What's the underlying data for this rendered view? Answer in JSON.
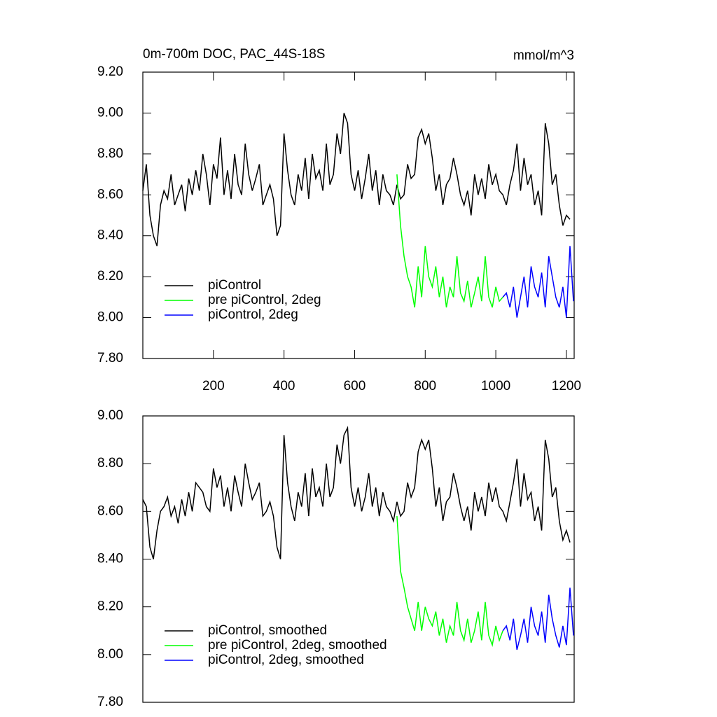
{
  "chart_data": [
    {
      "type": "line",
      "title": "0m-700m DOC, PAC_44S-18S",
      "units": "mmol/m^3",
      "legend": "lower left",
      "xlim": [
        0,
        1222
      ],
      "xticks": [
        200,
        400,
        600,
        800,
        1000,
        1200
      ],
      "ylim": [
        7.8,
        9.2
      ],
      "yticks": [
        {
          "value": 7.8,
          "label": "7.80"
        },
        {
          "value": 8.0,
          "label": "8.00"
        },
        {
          "value": 8.2,
          "label": "8.20"
        },
        {
          "value": 8.4,
          "label": "8.40"
        },
        {
          "value": 8.6,
          "label": "8.60"
        },
        {
          "value": 8.8,
          "label": "8.80"
        },
        {
          "value": 9.0,
          "label": "9.00"
        },
        {
          "value": 9.2,
          "label": "9.20"
        }
      ],
      "series": [
        {
          "name": "piControl",
          "color": "#000000",
          "x": [
            0,
            10,
            20,
            30,
            40,
            50,
            60,
            70,
            80,
            90,
            100,
            110,
            120,
            130,
            140,
            150,
            160,
            170,
            180,
            190,
            200,
            210,
            220,
            230,
            240,
            250,
            260,
            270,
            280,
            290,
            300,
            310,
            320,
            330,
            340,
            350,
            360,
            370,
            380,
            390,
            400,
            410,
            420,
            430,
            440,
            450,
            460,
            470,
            480,
            490,
            500,
            510,
            520,
            530,
            540,
            550,
            560,
            570,
            580,
            590,
            600,
            610,
            620,
            630,
            640,
            650,
            660,
            670,
            680,
            690,
            700,
            710,
            720,
            730,
            740,
            750,
            760,
            770,
            780,
            790,
            800,
            810,
            820,
            830,
            840,
            850,
            860,
            870,
            880,
            890,
            900,
            910,
            920,
            930,
            940,
            950,
            960,
            970,
            980,
            990,
            1000,
            1010,
            1020,
            1030,
            1040,
            1050,
            1060,
            1070,
            1080,
            1090,
            1100,
            1110,
            1120,
            1130,
            1140,
            1150,
            1160,
            1170,
            1180,
            1190,
            1200,
            1210
          ],
          "values": [
            8.62,
            8.75,
            8.5,
            8.4,
            8.35,
            8.55,
            8.62,
            8.58,
            8.7,
            8.55,
            8.6,
            8.65,
            8.52,
            8.68,
            8.6,
            8.72,
            8.62,
            8.8,
            8.7,
            8.55,
            8.75,
            8.68,
            8.88,
            8.6,
            8.72,
            8.58,
            8.8,
            8.65,
            8.6,
            8.85,
            8.7,
            8.62,
            8.68,
            8.75,
            8.55,
            8.6,
            8.65,
            8.58,
            8.4,
            8.45,
            8.9,
            8.72,
            8.6,
            8.55,
            8.7,
            8.62,
            8.78,
            8.58,
            8.8,
            8.68,
            8.72,
            8.62,
            8.85,
            8.65,
            8.7,
            8.9,
            8.8,
            9.0,
            8.95,
            8.7,
            8.62,
            8.72,
            8.58,
            8.68,
            8.8,
            8.62,
            8.72,
            8.55,
            8.7,
            8.62,
            8.6,
            8.55,
            8.65,
            8.58,
            8.6,
            8.75,
            8.68,
            8.7,
            8.88,
            8.92,
            8.85,
            8.9,
            8.78,
            8.62,
            8.7,
            8.55,
            8.65,
            8.68,
            8.78,
            8.7,
            8.6,
            8.55,
            8.62,
            8.5,
            8.7,
            8.6,
            8.68,
            8.58,
            8.75,
            8.65,
            8.7,
            8.62,
            8.6,
            8.55,
            8.65,
            8.72,
            8.85,
            8.62,
            8.78,
            8.65,
            8.7,
            8.55,
            8.62,
            8.5,
            8.95,
            8.85,
            8.65,
            8.7,
            8.55,
            8.45,
            8.5,
            8.48
          ]
        },
        {
          "name": "pre piControl, 2deg",
          "color": "#00ff00",
          "x": [
            720,
            730,
            740,
            750,
            760,
            770,
            780,
            790,
            800,
            810,
            820,
            830,
            840,
            850,
            860,
            870,
            880,
            890,
            900,
            910,
            920,
            930,
            940,
            950,
            960,
            970,
            980,
            990,
            1000,
            1010,
            1020
          ],
          "values": [
            8.7,
            8.45,
            8.3,
            8.2,
            8.15,
            8.05,
            8.25,
            8.1,
            8.35,
            8.2,
            8.15,
            8.25,
            8.1,
            8.2,
            8.05,
            8.15,
            8.1,
            8.3,
            8.12,
            8.08,
            8.18,
            8.05,
            8.12,
            8.2,
            8.08,
            8.3,
            8.1,
            8.05,
            8.15,
            8.08,
            8.1
          ]
        },
        {
          "name": "piControl, 2deg",
          "color": "#0000ff",
          "x": [
            1020,
            1030,
            1040,
            1050,
            1060,
            1070,
            1080,
            1090,
            1100,
            1110,
            1120,
            1130,
            1140,
            1150,
            1160,
            1170,
            1180,
            1190,
            1200,
            1210,
            1220
          ],
          "values": [
            8.1,
            8.12,
            8.05,
            8.15,
            8.0,
            8.1,
            8.2,
            8.05,
            8.25,
            8.15,
            8.1,
            8.22,
            8.05,
            8.3,
            8.2,
            8.1,
            8.05,
            8.15,
            8.0,
            8.35,
            8.08
          ]
        }
      ]
    },
    {
      "type": "line",
      "legend": "lower left",
      "xlim": [
        0,
        1222
      ],
      "ylim": [
        7.8,
        9.0
      ],
      "yticks": [
        {
          "value": 7.8,
          "label": "7.80"
        },
        {
          "value": 8.0,
          "label": "8.00"
        },
        {
          "value": 8.2,
          "label": "8.20"
        },
        {
          "value": 8.4,
          "label": "8.40"
        },
        {
          "value": 8.6,
          "label": "8.60"
        },
        {
          "value": 8.8,
          "label": "8.80"
        },
        {
          "value": 9.0,
          "label": "9.00"
        }
      ],
      "series": [
        {
          "name": "piControl, smoothed",
          "color": "#000000",
          "x": [
            0,
            10,
            20,
            30,
            40,
            50,
            60,
            70,
            80,
            90,
            100,
            110,
            120,
            130,
            140,
            150,
            160,
            170,
            180,
            190,
            200,
            210,
            220,
            230,
            240,
            250,
            260,
            270,
            280,
            290,
            300,
            310,
            320,
            330,
            340,
            350,
            360,
            370,
            380,
            390,
            400,
            410,
            420,
            430,
            440,
            450,
            460,
            470,
            480,
            490,
            500,
            510,
            520,
            530,
            540,
            550,
            560,
            570,
            580,
            590,
            600,
            610,
            620,
            630,
            640,
            650,
            660,
            670,
            680,
            690,
            700,
            710,
            720,
            730,
            740,
            750,
            760,
            770,
            780,
            790,
            800,
            810,
            820,
            830,
            840,
            850,
            860,
            870,
            880,
            890,
            900,
            910,
            920,
            930,
            940,
            950,
            960,
            970,
            980,
            990,
            1000,
            1010,
            1020,
            1030,
            1040,
            1050,
            1060,
            1070,
            1080,
            1090,
            1100,
            1110,
            1120,
            1130,
            1140,
            1150,
            1160,
            1170,
            1180,
            1190,
            1200,
            1210
          ],
          "values": [
            8.65,
            8.62,
            8.45,
            8.4,
            8.52,
            8.6,
            8.62,
            8.66,
            8.58,
            8.62,
            8.55,
            8.65,
            8.58,
            8.68,
            8.6,
            8.72,
            8.7,
            8.68,
            8.62,
            8.6,
            8.78,
            8.7,
            8.75,
            8.62,
            8.7,
            8.6,
            8.75,
            8.68,
            8.62,
            8.8,
            8.72,
            8.65,
            8.68,
            8.72,
            8.58,
            8.6,
            8.64,
            8.58,
            8.45,
            8.4,
            8.92,
            8.72,
            8.62,
            8.56,
            8.68,
            8.62,
            8.76,
            8.58,
            8.78,
            8.66,
            8.7,
            8.62,
            8.8,
            8.66,
            8.7,
            8.88,
            8.8,
            8.92,
            8.95,
            8.7,
            8.62,
            8.7,
            8.6,
            8.66,
            8.76,
            8.62,
            8.7,
            8.58,
            8.68,
            8.62,
            8.6,
            8.56,
            8.64,
            8.58,
            8.6,
            8.72,
            8.66,
            8.7,
            8.85,
            8.9,
            8.86,
            8.9,
            8.78,
            8.62,
            8.7,
            8.56,
            8.64,
            8.66,
            8.76,
            8.7,
            8.62,
            8.56,
            8.62,
            8.52,
            8.68,
            8.6,
            8.66,
            8.58,
            8.72,
            8.64,
            8.7,
            8.62,
            8.6,
            8.56,
            8.64,
            8.72,
            8.82,
            8.62,
            8.76,
            8.65,
            8.68,
            8.56,
            8.62,
            8.52,
            8.9,
            8.82,
            8.66,
            8.7,
            8.56,
            8.48,
            8.52,
            8.47
          ]
        },
        {
          "name": "pre piControl, 2deg, smoothed",
          "color": "#00ff00",
          "x": [
            720,
            730,
            740,
            750,
            760,
            770,
            780,
            790,
            800,
            810,
            820,
            830,
            840,
            850,
            860,
            870,
            880,
            890,
            900,
            910,
            920,
            930,
            940,
            950,
            960,
            970,
            980,
            990,
            1000,
            1010,
            1020
          ],
          "values": [
            8.58,
            8.35,
            8.28,
            8.2,
            8.15,
            8.1,
            8.22,
            8.1,
            8.2,
            8.15,
            8.12,
            8.18,
            8.08,
            8.15,
            8.05,
            8.12,
            8.08,
            8.22,
            8.1,
            8.06,
            8.15,
            8.05,
            8.1,
            8.18,
            8.06,
            8.22,
            8.08,
            8.04,
            8.12,
            8.06,
            8.1
          ]
        },
        {
          "name": "piControl, 2deg, smoothed",
          "color": "#0000ff",
          "x": [
            1020,
            1030,
            1040,
            1050,
            1060,
            1070,
            1080,
            1090,
            1100,
            1110,
            1120,
            1130,
            1140,
            1150,
            1160,
            1170,
            1180,
            1190,
            1200,
            1210,
            1220
          ],
          "values": [
            8.1,
            8.12,
            8.06,
            8.15,
            8.02,
            8.08,
            8.15,
            8.05,
            8.2,
            8.12,
            8.08,
            8.18,
            8.05,
            8.25,
            8.15,
            8.08,
            8.03,
            8.12,
            8.04,
            8.28,
            8.08
          ]
        }
      ]
    }
  ]
}
